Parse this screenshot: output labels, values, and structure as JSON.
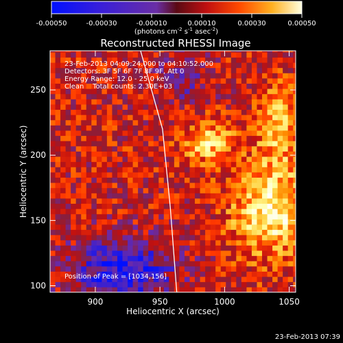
{
  "chart_data": {
    "type": "heatmap",
    "title": "Reconstructed RHESSI Image",
    "xlabel": "Heliocentric X (arcsec)",
    "ylabel": "Heliocentric Y (arcsec)",
    "xlim": [
      865,
      1055
    ],
    "ylim": [
      95,
      280
    ],
    "x_ticks": [
      900,
      950,
      1000,
      1050
    ],
    "y_ticks": [
      100,
      150,
      200,
      250
    ],
    "colorbar": {
      "range": [
        -0.0005,
        0.0005
      ],
      "ticks": [
        "-0.00050",
        "-0.00030",
        "-0.00010",
        "0.00010",
        "0.00030",
        "0.00050"
      ],
      "tick_values": [
        -0.0005,
        -0.0003,
        -0.0001,
        0.0001,
        0.0003,
        0.0005
      ],
      "unit_text": "(photons cm",
      "unit_sup1": "-2",
      "unit_mid": " s",
      "unit_sup2": "-1",
      "unit_mid2": " asec",
      "unit_sup3": "-2",
      "unit_end": ")"
    },
    "annotations": {
      "time_range": "23-Feb-2013 04:09:24.000 to 04:10:52.000",
      "detectors": "Detectors: 3F 5F 6F 7F 8F 9F, Att 0",
      "energy": "Energy Range: 12.0 - 25.0 keV",
      "clean": "Clean    Total counts: 2.30E+03",
      "peak": "Position of Peak = [1034,156]"
    },
    "peak": [
      1034,
      156
    ],
    "limb_line": [
      [
        935,
        280
      ],
      [
        952,
        220
      ],
      [
        958,
        160
      ],
      [
        963,
        95
      ]
    ],
    "timestamp": "23-Feb-2013 07:39"
  },
  "colors": {
    "background": "#000000",
    "text": "#ffffff",
    "limb": "#ffffff",
    "colormap": [
      "#0010ff",
      "#3a20d0",
      "#6a2aa8",
      "#8a1e3a",
      "#c01010",
      "#ff3800",
      "#ff8a00",
      "#ffd040",
      "#ffffa0",
      "#ffffff"
    ]
  }
}
